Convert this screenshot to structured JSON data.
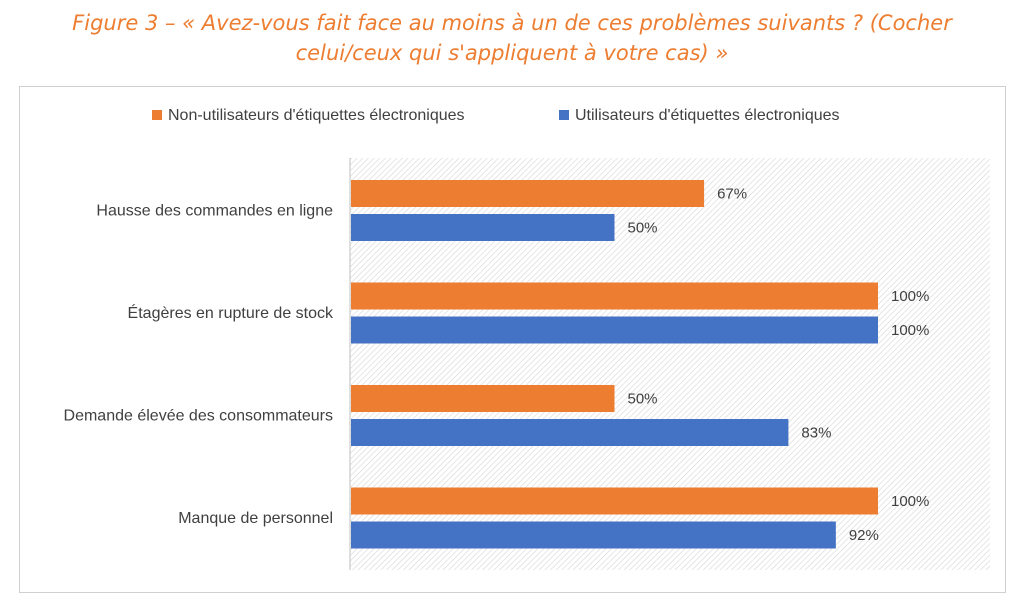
{
  "title_line1": "Figure 3 – « Avez-vous fait face au moins à un de ces problèmes suivants ? (Cocher",
  "title_line2": "celui/ceux qui s'appliquent à votre cas) »",
  "chart_data": {
    "type": "bar",
    "orientation": "horizontal",
    "categories": [
      "Hausse des commandes en ligne",
      "Étagères en rupture de stock",
      "Demande élevée des consommateurs",
      "Manque de personnel"
    ],
    "series": [
      {
        "name": "Non-utilisateurs d'étiquettes électroniques",
        "color": "#ED7D31",
        "values": [
          67,
          100,
          50,
          100
        ]
      },
      {
        "name": "Utilisateurs d'étiquettes électroniques",
        "color": "#4472C4",
        "values": [
          50,
          100,
          83,
          92
        ]
      }
    ],
    "value_suffix": "%",
    "xlim": [
      0,
      100
    ],
    "legend_position": "top",
    "grid": false
  }
}
